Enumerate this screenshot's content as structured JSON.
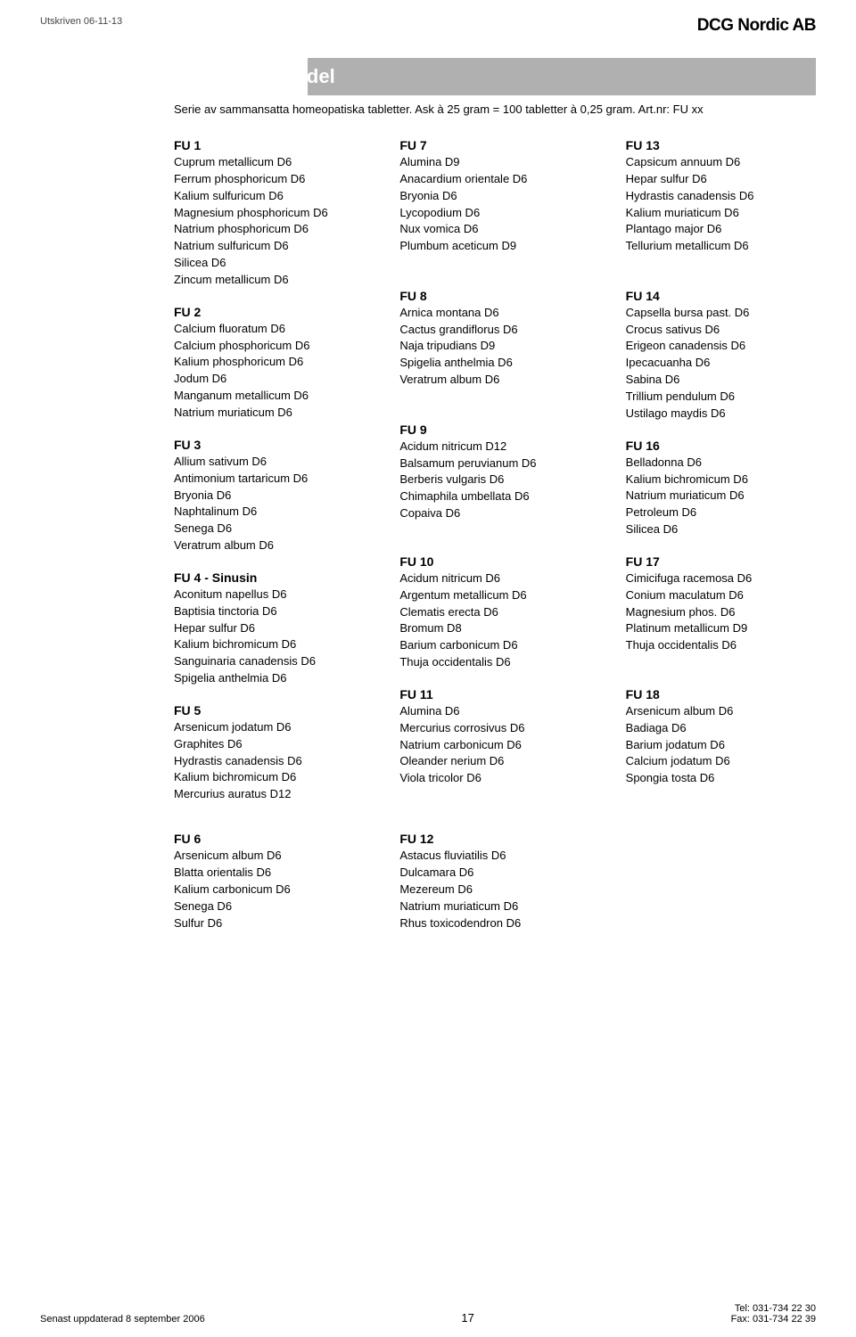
{
  "header": {
    "print_date": "Utskriven 06-11-13",
    "company": "DCG Nordic AB"
  },
  "title": "Funktionsmedel",
  "subtitle": "Serie av sammansatta homeopatiska tabletter. Ask à 25 gram = 100 tabletter à 0,25 gram. Art.nr: FU xx",
  "columns": [
    [
      {
        "title": "FU 1",
        "items": [
          "Cuprum metallicum D6",
          "Ferrum phosphoricum D6",
          "Kalium sulfuricum D6",
          "Magnesium phosphoricum D6",
          "Natrium phosphoricum D6",
          "Natrium sulfuricum D6",
          "Silicea D6",
          "Zincum metallicum D6"
        ]
      },
      {
        "title": "FU 2",
        "items": [
          "Calcium fluoratum D6",
          "Calcium phosphoricum D6",
          "Kalium phosphoricum D6",
          "Jodum D6",
          "Manganum metallicum D6",
          "Natrium muriaticum D6"
        ]
      },
      {
        "title": "FU 3",
        "items": [
          "Allium sativum D6",
          "Antimonium tartaricum D6",
          "Bryonia D6",
          "Naphtalinum D6",
          "Senega D6",
          "Veratrum album D6"
        ]
      },
      {
        "title": "FU 4 - Sinusin",
        "items": [
          "Aconitum napellus D6",
          "Baptisia tinctoria D6",
          "Hepar sulfur D6",
          "Kalium bichromicum D6",
          "Sanguinaria canadensis D6",
          "Spigelia anthelmia D6"
        ]
      },
      {
        "title": "FU 5",
        "items": [
          "Arsenicum jodatum D6",
          "Graphites D6",
          "Hydrastis canadensis D6",
          "Kalium bichromicum D6",
          "Mercurius auratus D12"
        ]
      },
      {
        "title": "FU 6",
        "items": [
          "Arsenicum album D6",
          "Blatta orientalis D6",
          "Kalium carbonicum D6",
          "Senega D6",
          "Sulfur D6"
        ]
      }
    ],
    [
      {
        "title": "FU 7",
        "items": [
          "Alumina D9",
          "Anacardium orientale D6",
          "Bryonia D6",
          "Lycopodium D6",
          "Nux vomica D6",
          "Plumbum aceticum D9"
        ]
      },
      {
        "title": "FU 8",
        "items": [
          "Arnica montana D6",
          "Cactus grandiflorus D6",
          "Naja tripudians D9",
          "Spigelia anthelmia D6",
          "Veratrum album D6"
        ]
      },
      {
        "title": "FU 9",
        "items": [
          "Acidum nitricum D12",
          "Balsamum peruvianum D6",
          "Berberis vulgaris D6",
          "Chimaphila umbellata D6",
          "Copaiva D6"
        ]
      },
      {
        "title": "FU 10",
        "items": [
          "Acidum nitricum D6",
          "Argentum metallicum D6",
          "Clematis erecta D6",
          "Bromum D8",
          "Barium carbonicum D6",
          "Thuja occidentalis D6"
        ]
      },
      {
        "title": "FU 11",
        "items": [
          "Alumina D6",
          "Mercurius corrosivus D6",
          "Natrium carbonicum D6",
          "Oleander nerium D6",
          "Viola tricolor D6"
        ]
      },
      {
        "title": "FU 12",
        "items": [
          "Astacus fluviatilis D6",
          "Dulcamara D6",
          "Mezereum D6",
          "Natrium muriaticum D6",
          "Rhus toxicodendron D6"
        ]
      }
    ],
    [
      {
        "title": "FU 13",
        "items": [
          "Capsicum annuum D6",
          "Hepar sulfur D6",
          "Hydrastis canadensis D6",
          "Kalium muriaticum D6",
          "Plantago major D6",
          "Tellurium metallicum D6"
        ]
      },
      {
        "title": "FU 14",
        "items": [
          "Capsella bursa past. D6",
          "Crocus sativus D6",
          "Erigeon canadensis D6",
          "Ipecacuanha D6",
          "Sabina D6",
          "Trillium pendulum D6",
          "Ustilago maydis D6"
        ]
      },
      {
        "title": "FU 16",
        "items": [
          "Belladonna D6",
          "Kalium bichromicum D6",
          "Natrium muriaticum D6",
          "Petroleum D6",
          "Silicea D6"
        ]
      },
      {
        "title": "FU 17",
        "items": [
          "Cimicifuga racemosa D6",
          "Conium maculatum D6",
          "Magnesium phos. D6",
          "Platinum metallicum D9",
          "Thuja occidentalis D6"
        ]
      },
      {
        "title": "FU 18",
        "items": [
          "Arsenicum album D6",
          "Badiaga D6",
          "Barium jodatum D6",
          "Calcium jodatum D6",
          "Spongia tosta D6"
        ]
      }
    ]
  ],
  "footer": {
    "updated": "Senast uppdaterad  8 september 2006",
    "page": "17",
    "tel": "Tel: 031-734 22 30",
    "fax": "Fax: 031-734 22 39"
  },
  "row_gaps_after": {
    "0": [
      "FU 1",
      "FU 2",
      "FU 3",
      "FU 4 - Sinusin",
      "FU 5"
    ],
    "1": [
      "FU 8",
      "FU 9",
      "FU 10",
      "FU 11"
    ],
    "2": [
      "FU 14",
      "FU 16",
      "FU 17"
    ]
  }
}
